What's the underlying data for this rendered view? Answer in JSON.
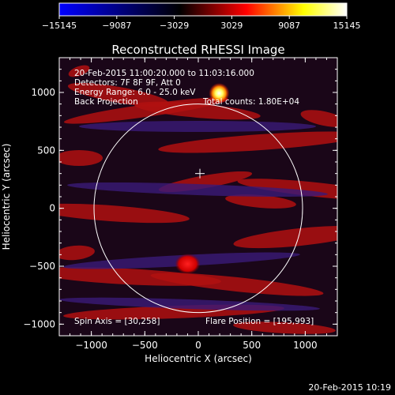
{
  "colorbar": {
    "ticks": [
      "-15145",
      "-9087",
      "-3029",
      "3029",
      "9087",
      "15145"
    ],
    "min": -15145,
    "max": 15145,
    "colors": [
      "#0000ff",
      "#000000",
      "#ff0000",
      "#ffff00",
      "#ffffff"
    ]
  },
  "chart_data": {
    "type": "heatmap",
    "title": "Reconstructed RHESSI Image",
    "xlabel": "Heliocentric X (arcsec)",
    "ylabel": "Heliocentric Y (arcsec)",
    "xlim": [
      -1300,
      1300
    ],
    "ylim": [
      -1100,
      1300
    ],
    "xticks": [
      -1000,
      -500,
      0,
      500,
      1000
    ],
    "yticks": [
      -1000,
      -500,
      0,
      500,
      1000
    ],
    "xtick_labels": [
      "−1000",
      "−500",
      "0",
      "500",
      "1000"
    ],
    "ytick_labels": [
      "−1000",
      "−500",
      "0",
      "500",
      "1000"
    ],
    "solar_limb_radius_arcsec": 975,
    "sun_center": [
      0,
      0
    ],
    "center_marker": [
      15,
      300
    ],
    "flare_source": {
      "x": 195,
      "y": 993,
      "label": "flare"
    },
    "secondary_source": {
      "x": -100,
      "y": -480
    },
    "grid": false,
    "annotations": {
      "time_range": "20-Feb-2015 11:00:20.000 to 11:03:16.000",
      "detectors": "Detectors: 7F 8F 9F, Att 0",
      "energy": "Energy Range: 6.0 - 25.0 keV",
      "method": "Back Projection",
      "counts": "Total counts: 1.80E+04",
      "spin_axis": "Spin Axis = [30,258]",
      "flare_position": "Flare Position = [195,993]"
    }
  },
  "footer": {
    "timestamp": "20-Feb-2015 10:19"
  }
}
